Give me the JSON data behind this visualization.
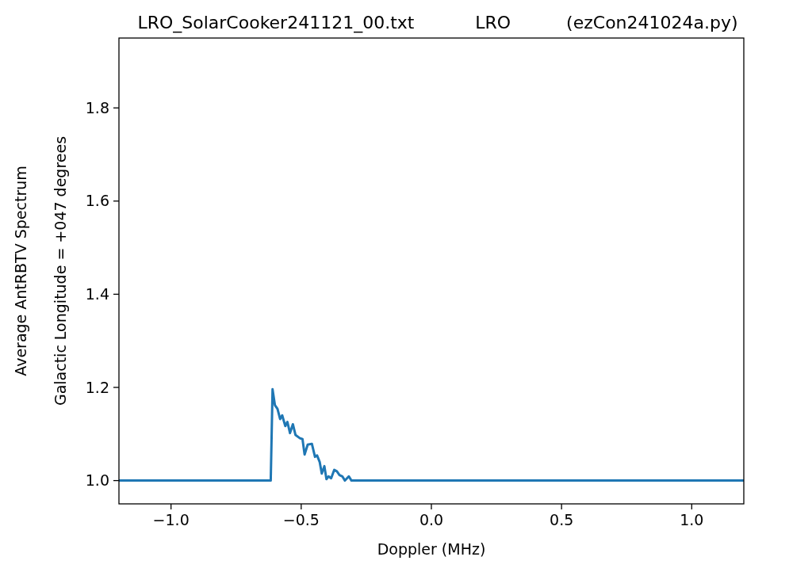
{
  "chart_data": {
    "type": "line",
    "title": "LRO_SolarCooker241121_00.txt           LRO          (ezCon241024a.py)",
    "xlabel": "Doppler (MHz)",
    "ylabel": "Average AntRBTV Spectrum\nGalactic Longitude = +047 degrees",
    "x": [
      -1.2,
      -0.617,
      -0.61,
      -0.601,
      -0.591,
      -0.581,
      -0.573,
      -0.561,
      -0.553,
      -0.543,
      -0.532,
      -0.522,
      -0.505,
      -0.495,
      -0.487,
      -0.475,
      -0.459,
      -0.447,
      -0.439,
      -0.429,
      -0.421,
      -0.411,
      -0.403,
      -0.395,
      -0.385,
      -0.373,
      -0.363,
      -0.353,
      -0.342,
      -0.332,
      -0.317,
      -0.307,
      1.2
    ],
    "series": [
      {
        "color": "#1f77b4",
        "values": [
          1.0,
          1.0,
          1.196,
          1.162,
          1.154,
          1.132,
          1.14,
          1.117,
          1.126,
          1.102,
          1.121,
          1.098,
          1.091,
          1.089,
          1.056,
          1.077,
          1.079,
          1.051,
          1.054,
          1.04,
          1.015,
          1.031,
          1.003,
          1.009,
          1.005,
          1.023,
          1.02,
          1.012,
          1.009,
          1.0,
          1.009,
          1.0,
          1.0
        ]
      }
    ],
    "xlim": [
      -1.2,
      1.2
    ],
    "xticks": [
      {
        "value": -1.0,
        "label": "−1.0"
      },
      {
        "value": -0.5,
        "label": "−0.5"
      },
      {
        "value": 0.0,
        "label": "0.0"
      },
      {
        "value": 0.5,
        "label": "0.5"
      },
      {
        "value": 1.0,
        "label": "1.0"
      }
    ],
    "ylim": [
      0.95,
      1.95
    ],
    "yticks": [
      {
        "value": 1.0,
        "label": "1.0"
      },
      {
        "value": 1.2,
        "label": "1.2"
      },
      {
        "value": 1.4,
        "label": "1.4"
      },
      {
        "value": 1.6,
        "label": "1.6"
      },
      {
        "value": 1.8,
        "label": "1.8"
      }
    ],
    "grid": false
  }
}
